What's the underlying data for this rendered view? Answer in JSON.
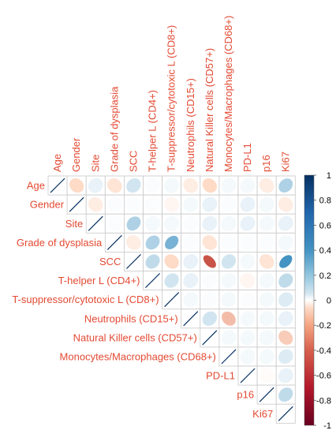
{
  "chart_data": {
    "type": "heatmap",
    "subtype": "correlation-ellipse-upper",
    "variables": [
      "Age",
      "Gender",
      "Site",
      "Grade of dysplasia",
      "SCC",
      "T-helper L (CD4+)",
      "T-suppressor/cytotoxic L (CD8+)",
      "Neutrophils (CD15+)",
      "Natural Killer cells (CD57+)",
      "Monocytes/Macrophages (CD68+)",
      "PD-L1",
      "p16",
      "Ki67"
    ],
    "matrix": [
      [
        1,
        -0.2,
        0.1,
        -0.15,
        0.2,
        0.02,
        0.05,
        -0.1,
        -0.2,
        0.05,
        0.05,
        -0.1,
        0.3
      ],
      [
        null,
        1,
        -0.1,
        0.02,
        0.02,
        0.02,
        -0.05,
        0.05,
        0.1,
        0.02,
        0.1,
        0.05,
        -0.1
      ],
      [
        null,
        null,
        1,
        0.02,
        0.3,
        0.05,
        0.05,
        0.02,
        0.1,
        0.05,
        0.1,
        0.05,
        0.1
      ],
      [
        null,
        null,
        null,
        1,
        -0.1,
        0.3,
        0.45,
        0.02,
        -0.15,
        0.02,
        0.02,
        0.02,
        0.05
      ],
      [
        null,
        null,
        null,
        null,
        1,
        0.25,
        -0.2,
        0.1,
        -0.65,
        0.2,
        0.05,
        -0.15,
        0.6
      ],
      [
        null,
        null,
        null,
        null,
        null,
        1,
        0.2,
        0.1,
        0.02,
        0.05,
        -0.05,
        0.05,
        0.25
      ],
      [
        null,
        null,
        null,
        null,
        null,
        null,
        1,
        0.05,
        0.02,
        0.05,
        0.02,
        0.05,
        0.15
      ],
      [
        null,
        null,
        null,
        null,
        null,
        null,
        null,
        1,
        0.2,
        -0.3,
        0.05,
        0.05,
        0.1
      ],
      [
        null,
        null,
        null,
        null,
        null,
        null,
        null,
        null,
        1,
        0.05,
        0.05,
        0.05,
        -0.25
      ],
      [
        null,
        null,
        null,
        null,
        null,
        null,
        null,
        null,
        null,
        1,
        0.05,
        0.05,
        0.15
      ],
      [
        null,
        null,
        null,
        null,
        null,
        null,
        null,
        null,
        null,
        null,
        1,
        -0.02,
        0.1
      ],
      [
        null,
        null,
        null,
        null,
        null,
        null,
        null,
        null,
        null,
        null,
        null,
        1,
        0.25
      ],
      [
        null,
        null,
        null,
        null,
        null,
        null,
        null,
        null,
        null,
        null,
        null,
        null,
        1
      ]
    ],
    "colorbar": {
      "ticks": [
        "1",
        "0.8",
        "0.6",
        "0.4",
        "0.2",
        "0",
        "-0.2",
        "-0.4",
        "-0.6",
        "-0.8",
        "-1"
      ],
      "range": [
        -1,
        1
      ],
      "colors": {
        "neg_strong": "#67001f",
        "neg_mid": "#d6604d",
        "neg_light": "#fddbc7",
        "neutral": "#ffffff",
        "pos_light": "#d1e5f0",
        "pos_mid": "#4393c3",
        "pos_strong": "#053061"
      }
    },
    "label_color": "#e34a33"
  }
}
